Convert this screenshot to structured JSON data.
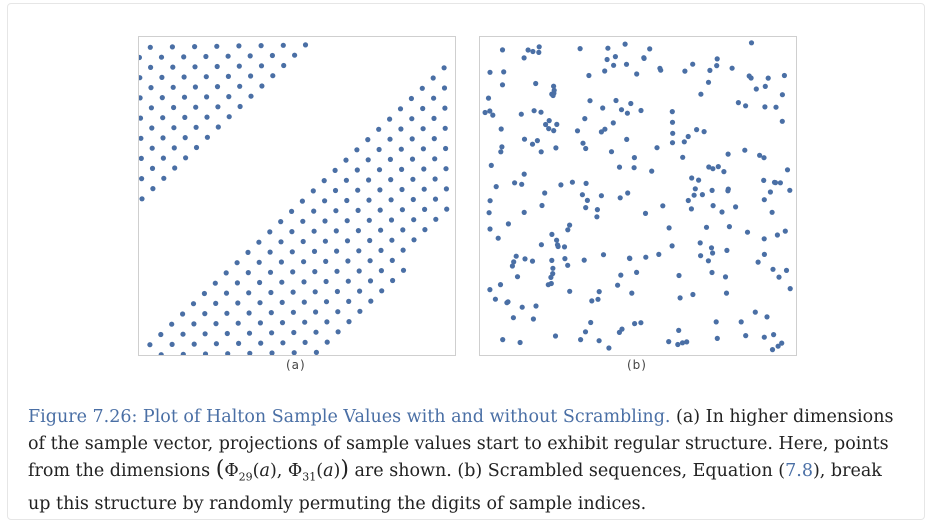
{
  "figure": {
    "panel_a_label": "(a)",
    "panel_b_label": "(b)",
    "caption_title": "Figure 7.26: Plot of Halton Sample Values with and without Scrambling.",
    "caption_part1": " (a) In higher dimensions of the sample vector, projections of sample values start to exhibit regular structure. Here, points from the dimensions ",
    "caption_part2": " are shown. (b) Scrambled sequences, Equation (",
    "equation_ref": "7.8",
    "caption_part3": "), break up this structure by randomly permuting the digits of sample indices.",
    "math_phi": "Φ",
    "math_sub_29": "29",
    "math_sub_31": "31",
    "math_var": "a"
  },
  "colors": {
    "point": "#4a6fa5",
    "title": "#4a6fa5",
    "text": "#222222"
  }
}
